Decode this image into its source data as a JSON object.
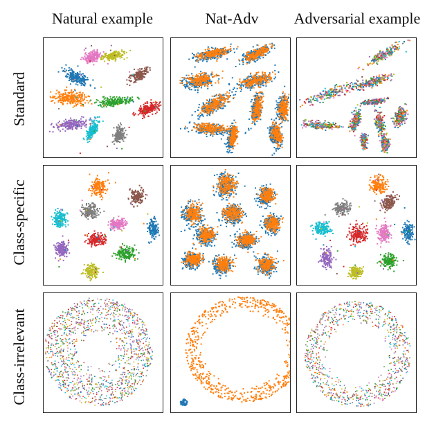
{
  "colors": {
    "blue": "#1f77b4",
    "orange": "#ff7f0e",
    "green": "#2ca02c",
    "red": "#d62728",
    "purple": "#9467bd",
    "brown": "#8c564b",
    "pink": "#e377c2",
    "gray": "#7f7f7f",
    "olive": "#bcbd22",
    "cyan": "#17becf"
  },
  "columns": [
    "Natural example",
    "Nat-Adv",
    "Adversarial example"
  ],
  "rows": [
    "Standard",
    "Class-specific",
    "Class-irrelevant"
  ],
  "chart_data": {
    "type": "scatter",
    "panels": [
      {
        "row": 0,
        "col": 0,
        "kind": "clusters",
        "clusters": [
          {
            "color": "pink",
            "x": 0.4,
            "y": 0.15,
            "sx": 0.04,
            "sy": 0.07,
            "angle": 70,
            "n": 180
          },
          {
            "color": "olive",
            "x": 0.57,
            "y": 0.14,
            "sx": 0.03,
            "sy": 0.08,
            "angle": 80,
            "n": 160
          },
          {
            "color": "blue",
            "x": 0.27,
            "y": 0.32,
            "sx": 0.1,
            "sy": 0.04,
            "angle": 25,
            "n": 220
          },
          {
            "color": "brown",
            "x": 0.79,
            "y": 0.3,
            "sx": 0.08,
            "sy": 0.04,
            "angle": -35,
            "n": 170
          },
          {
            "color": "orange",
            "x": 0.21,
            "y": 0.49,
            "sx": 0.13,
            "sy": 0.05,
            "angle": 5,
            "n": 260
          },
          {
            "color": "green",
            "x": 0.59,
            "y": 0.52,
            "sx": 0.13,
            "sy": 0.03,
            "angle": -5,
            "n": 200
          },
          {
            "color": "red",
            "x": 0.86,
            "y": 0.58,
            "sx": 0.09,
            "sy": 0.04,
            "angle": -25,
            "n": 200
          },
          {
            "color": "purple",
            "x": 0.22,
            "y": 0.71,
            "sx": 0.11,
            "sy": 0.04,
            "angle": -10,
            "n": 200
          },
          {
            "color": "cyan",
            "x": 0.4,
            "y": 0.76,
            "sx": 0.03,
            "sy": 0.09,
            "angle": 25,
            "n": 180
          },
          {
            "color": "gray",
            "x": 0.62,
            "y": 0.8,
            "sx": 0.04,
            "sy": 0.06,
            "angle": 20,
            "n": 180
          }
        ]
      },
      {
        "row": 0,
        "col": 1,
        "kind": "paired",
        "clusters": [
          {
            "x": 0.33,
            "y": 0.13,
            "sx": 0.14,
            "sy": 0.04,
            "angle": -10
          },
          {
            "x": 0.7,
            "y": 0.13,
            "sx": 0.12,
            "sy": 0.04,
            "angle": -25
          },
          {
            "x": 0.23,
            "y": 0.35,
            "sx": 0.13,
            "sy": 0.05,
            "angle": -10
          },
          {
            "x": 0.69,
            "y": 0.35,
            "sx": 0.14,
            "sy": 0.05,
            "angle": -15
          },
          {
            "x": 0.35,
            "y": 0.55,
            "sx": 0.14,
            "sy": 0.05,
            "angle": -30
          },
          {
            "x": 0.7,
            "y": 0.58,
            "sx": 0.04,
            "sy": 0.11,
            "angle": 10
          },
          {
            "x": 0.92,
            "y": 0.58,
            "sx": 0.04,
            "sy": 0.1,
            "angle": 5
          },
          {
            "x": 0.32,
            "y": 0.75,
            "sx": 0.15,
            "sy": 0.04,
            "angle": 5
          },
          {
            "x": 0.5,
            "y": 0.82,
            "sx": 0.03,
            "sy": 0.09,
            "angle": 10
          },
          {
            "x": 0.86,
            "y": 0.8,
            "sx": 0.04,
            "sy": 0.09,
            "angle": -10
          }
        ]
      },
      {
        "row": 0,
        "col": 2,
        "kind": "mixed",
        "clusters": [
          {
            "x": 0.72,
            "y": 0.13,
            "sx": 0.16,
            "sy": 0.03,
            "angle": -30
          },
          {
            "x": 0.62,
            "y": 0.36,
            "sx": 0.14,
            "sy": 0.03,
            "angle": -20
          },
          {
            "x": 0.28,
            "y": 0.45,
            "sx": 0.22,
            "sy": 0.04,
            "angle": -20
          },
          {
            "x": 0.63,
            "y": 0.52,
            "sx": 0.08,
            "sy": 0.02,
            "angle": -10
          },
          {
            "x": 0.2,
            "y": 0.72,
            "sx": 0.15,
            "sy": 0.03,
            "angle": 5
          },
          {
            "x": 0.48,
            "y": 0.68,
            "sx": 0.03,
            "sy": 0.08,
            "angle": 15
          },
          {
            "x": 0.68,
            "y": 0.7,
            "sx": 0.03,
            "sy": 0.09,
            "angle": -15
          },
          {
            "x": 0.85,
            "y": 0.65,
            "sx": 0.04,
            "sy": 0.07,
            "angle": 20
          },
          {
            "x": 0.73,
            "y": 0.87,
            "sx": 0.03,
            "sy": 0.05,
            "angle": 0
          },
          {
            "x": 0.55,
            "y": 0.85,
            "sx": 0.02,
            "sy": 0.05,
            "angle": 0
          }
        ]
      },
      {
        "row": 1,
        "col": 0,
        "kind": "clusters",
        "clusters": [
          {
            "color": "orange",
            "x": 0.45,
            "y": 0.17,
            "sx": 0.06,
            "sy": 0.07,
            "angle": 0,
            "n": 170
          },
          {
            "color": "brown",
            "x": 0.77,
            "y": 0.25,
            "sx": 0.05,
            "sy": 0.06,
            "angle": 20,
            "n": 150
          },
          {
            "color": "gray",
            "x": 0.38,
            "y": 0.37,
            "sx": 0.06,
            "sy": 0.05,
            "angle": 0,
            "n": 170
          },
          {
            "color": "cyan",
            "x": 0.13,
            "y": 0.44,
            "sx": 0.05,
            "sy": 0.06,
            "angle": 0,
            "n": 160
          },
          {
            "color": "pink",
            "x": 0.61,
            "y": 0.48,
            "sx": 0.06,
            "sy": 0.04,
            "angle": 0,
            "n": 160
          },
          {
            "color": "blue",
            "x": 0.9,
            "y": 0.52,
            "sx": 0.04,
            "sy": 0.07,
            "angle": 0,
            "n": 150
          },
          {
            "color": "red",
            "x": 0.43,
            "y": 0.61,
            "sx": 0.07,
            "sy": 0.04,
            "angle": 0,
            "n": 170
          },
          {
            "color": "purple",
            "x": 0.15,
            "y": 0.69,
            "sx": 0.05,
            "sy": 0.06,
            "angle": 0,
            "n": 160
          },
          {
            "color": "green",
            "x": 0.68,
            "y": 0.72,
            "sx": 0.07,
            "sy": 0.05,
            "angle": 0,
            "n": 170
          },
          {
            "color": "olive",
            "x": 0.39,
            "y": 0.87,
            "sx": 0.05,
            "sy": 0.05,
            "angle": 0,
            "n": 150
          }
        ]
      },
      {
        "row": 1,
        "col": 1,
        "kind": "paired",
        "clusters": [
          {
            "x": 0.45,
            "y": 0.16,
            "sx": 0.08,
            "sy": 0.09,
            "angle": 0
          },
          {
            "x": 0.78,
            "y": 0.25,
            "sx": 0.06,
            "sy": 0.07,
            "angle": 20
          },
          {
            "x": 0.17,
            "y": 0.4,
            "sx": 0.07,
            "sy": 0.08,
            "angle": 0
          },
          {
            "x": 0.5,
            "y": 0.4,
            "sx": 0.08,
            "sy": 0.07,
            "angle": 0
          },
          {
            "x": 0.83,
            "y": 0.48,
            "sx": 0.06,
            "sy": 0.07,
            "angle": 0
          },
          {
            "x": 0.28,
            "y": 0.58,
            "sx": 0.07,
            "sy": 0.07,
            "angle": 0
          },
          {
            "x": 0.61,
            "y": 0.62,
            "sx": 0.08,
            "sy": 0.06,
            "angle": 0
          },
          {
            "x": 0.17,
            "y": 0.78,
            "sx": 0.07,
            "sy": 0.06,
            "angle": 0
          },
          {
            "x": 0.42,
            "y": 0.82,
            "sx": 0.07,
            "sy": 0.06,
            "angle": 0
          },
          {
            "x": 0.78,
            "y": 0.82,
            "sx": 0.07,
            "sy": 0.07,
            "angle": 0
          }
        ]
      },
      {
        "row": 1,
        "col": 2,
        "kind": "clusters",
        "clusters": [
          {
            "color": "orange",
            "x": 0.67,
            "y": 0.15,
            "sx": 0.06,
            "sy": 0.06,
            "angle": 0,
            "n": 160
          },
          {
            "color": "brown",
            "x": 0.76,
            "y": 0.3,
            "sx": 0.07,
            "sy": 0.04,
            "angle": -50,
            "n": 150
          },
          {
            "color": "gray",
            "x": 0.37,
            "y": 0.35,
            "sx": 0.06,
            "sy": 0.05,
            "angle": 0,
            "n": 150
          },
          {
            "color": "cyan",
            "x": 0.2,
            "y": 0.52,
            "sx": 0.07,
            "sy": 0.05,
            "angle": 0,
            "n": 150
          },
          {
            "color": "red",
            "x": 0.5,
            "y": 0.56,
            "sx": 0.07,
            "sy": 0.06,
            "angle": 0,
            "n": 180
          },
          {
            "color": "pink",
            "x": 0.72,
            "y": 0.56,
            "sx": 0.05,
            "sy": 0.07,
            "angle": 0,
            "n": 150
          },
          {
            "color": "blue",
            "x": 0.92,
            "y": 0.54,
            "sx": 0.04,
            "sy": 0.07,
            "angle": 0,
            "n": 150
          },
          {
            "color": "purple",
            "x": 0.24,
            "y": 0.76,
            "sx": 0.04,
            "sy": 0.07,
            "angle": 0,
            "n": 150
          },
          {
            "color": "green",
            "x": 0.76,
            "y": 0.78,
            "sx": 0.06,
            "sy": 0.05,
            "angle": 0,
            "n": 160
          },
          {
            "color": "olive",
            "x": 0.48,
            "y": 0.88,
            "sx": 0.05,
            "sy": 0.04,
            "angle": 0,
            "n": 150
          }
        ]
      },
      {
        "row": 2,
        "col": 0,
        "kind": "ring",
        "ring": {
          "x": 0.45,
          "y": 0.48,
          "inner": 0.13,
          "outer": 0.45,
          "n": 1300
        }
      },
      {
        "row": 2,
        "col": 1,
        "kind": "orange_ring",
        "ring": {
          "x": 0.6,
          "y": 0.46,
          "inner": 0.32,
          "outer": 0.46,
          "n": 700
        },
        "blob": {
          "x": 0.1,
          "y": 0.9,
          "r": 0.03,
          "n": 60
        }
      },
      {
        "row": 2,
        "col": 2,
        "kind": "ring",
        "ring": {
          "x": 0.5,
          "y": 0.5,
          "inner": 0.24,
          "outer": 0.44,
          "n": 900
        }
      }
    ]
  }
}
